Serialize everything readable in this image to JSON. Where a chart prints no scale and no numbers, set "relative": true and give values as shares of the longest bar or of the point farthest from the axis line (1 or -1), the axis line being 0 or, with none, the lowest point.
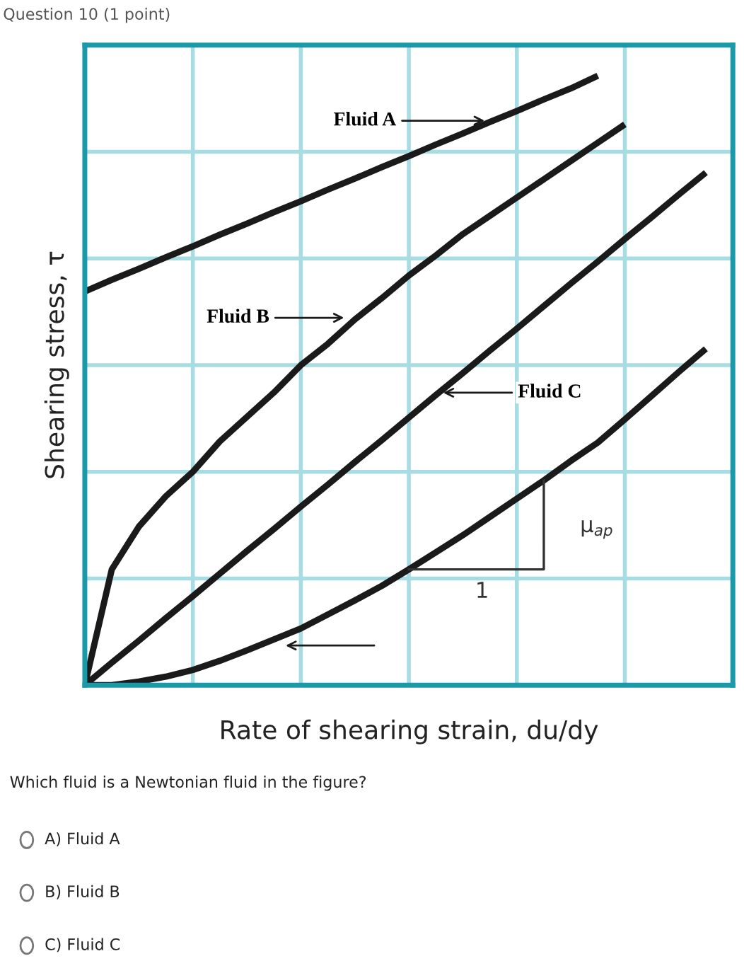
{
  "chart_data": {
    "type": "line",
    "relative": true,
    "title": "Question 10 (1 point)",
    "xlabel": "Rate of shearing strain, du/dy",
    "ylabel": "Shearing stress, τ",
    "categories": [
      null,
      null,
      null,
      null,
      null,
      null,
      null,
      null,
      null,
      null,
      null,
      null,
      null,
      null,
      null,
      null,
      null,
      null,
      null,
      null,
      null,
      null,
      null,
      null,
      null
    ],
    "grid": true,
    "marker": "none",
    "line_style": "solid",
    "series": [
      {
        "color": "#1a1a1a",
        "values": [
          0.646,
          0.665,
          0.683,
          0.702,
          0.72,
          0.739,
          0.757,
          0.776,
          0.794,
          0.813,
          0.831,
          0.85,
          0.868,
          0.887,
          0.905,
          0.924,
          0.942,
          0.961,
          0.979,
          1.0,
          null,
          null,
          null,
          null,
          null
        ]
      },
      {
        "color": "#1a1a1a",
        "values": [
          0,
          0.19,
          0.26,
          0.31,
          0.35,
          0.4,
          0.44,
          0.48,
          0.525,
          0.56,
          0.6,
          0.635,
          0.672,
          0.705,
          0.74,
          0.77,
          0.8,
          0.83,
          0.86,
          0.89,
          0.92,
          null,
          null,
          null,
          null
        ]
      },
      {
        "color": "#1a1a1a",
        "values": [
          0,
          0.037,
          0.073,
          0.11,
          0.146,
          0.183,
          0.22,
          0.256,
          0.293,
          0.329,
          0.366,
          0.402,
          0.439,
          0.476,
          0.512,
          0.549,
          0.585,
          0.622,
          0.659,
          0.695,
          0.732,
          0.768,
          0.805,
          0.841,
          null
        ]
      },
      {
        "color": "#1a1a1a",
        "values": [
          0,
          0,
          0.006,
          0.014,
          0.025,
          0.04,
          0.057,
          0.075,
          0.093,
          0.116,
          0.139,
          0.163,
          0.19,
          0.218,
          0.246,
          0.276,
          0.306,
          0.336,
          0.368,
          0.398,
          0.436,
          0.475,
          0.514,
          0.552,
          null
        ]
      }
    ],
    "annotations": [
      "Fluid A",
      "Fluid B",
      "Fluid C",
      "1",
      "μ$_{ap}$",
      "Which fluid is a Newtonian fluid in the figure?",
      "A) Fluid A",
      "B) Fluid B",
      "C) Fluid C"
    ]
  }
}
